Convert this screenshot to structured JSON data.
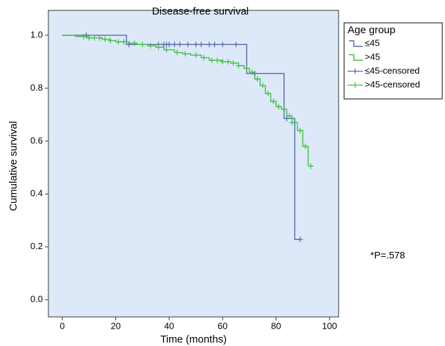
{
  "chart_data": {
    "type": "km",
    "title": "Disease-free survival",
    "x_label": "Time (months)",
    "y_label": "Cumulative survival",
    "legend_title": "Age group",
    "legend_position": "right",
    "annotation": "*P=.578",
    "xlim": [
      -5.2,
      103.4
    ],
    "xticks": [
      0,
      20,
      40,
      60,
      80,
      100
    ],
    "ylim": [
      -0.065,
      1.094
    ],
    "yticks": [
      {
        "value": 0,
        "label": "0.0"
      },
      0.2,
      0.4,
      0.6,
      0.8,
      {
        "value": 1,
        "label": "1.0"
      }
    ],
    "series": [
      {
        "name": "≤45",
        "kind": "step",
        "color": "#5565a8",
        "x": [
          0,
          24,
          69,
          83,
          87,
          89
        ],
        "values": [
          1.0,
          0.965,
          0.855,
          0.685,
          0.228,
          0.228
        ]
      },
      {
        "name": ">45",
        "kind": "step",
        "color": "#3cc03c",
        "x": [
          0,
          5,
          10,
          15,
          18,
          20,
          25,
          28,
          32,
          35,
          38,
          42,
          45,
          48,
          52,
          55,
          60,
          63,
          66,
          68,
          70,
          72,
          74,
          76,
          78,
          80,
          82,
          84,
          86,
          88,
          90,
          92
        ],
        "values": [
          1.0,
          0.995,
          0.99,
          0.985,
          0.98,
          0.975,
          0.97,
          0.965,
          0.96,
          0.955,
          0.945,
          0.935,
          0.93,
          0.925,
          0.915,
          0.905,
          0.9,
          0.895,
          0.885,
          0.875,
          0.86,
          0.835,
          0.81,
          0.78,
          0.75,
          0.73,
          0.72,
          0.695,
          0.67,
          0.64,
          0.58,
          0.505
        ]
      },
      {
        "name": "≤45-censored",
        "kind": "censor",
        "color": "#5565a8",
        "x": [
          9,
          25,
          36,
          38,
          39,
          40,
          42,
          44,
          47,
          50,
          52,
          55,
          57,
          60,
          65,
          72,
          84,
          89
        ],
        "values": [
          1.0,
          0.965,
          0.965,
          0.965,
          0.965,
          0.965,
          0.965,
          0.965,
          0.965,
          0.965,
          0.965,
          0.965,
          0.965,
          0.965,
          0.965,
          0.855,
          0.685,
          0.228
        ]
      },
      {
        "name": ">45-censored",
        "kind": "censor",
        "color": "#3cc03c",
        "x": [
          8,
          10,
          12,
          14,
          16,
          18,
          21,
          23,
          27,
          30,
          33,
          36,
          39,
          43,
          46,
          50,
          53,
          56,
          58,
          60,
          62,
          64,
          66,
          69,
          71,
          73,
          75,
          77,
          79,
          81,
          85,
          86,
          89,
          91,
          93
        ],
        "values": [
          0.995,
          0.99,
          0.99,
          0.99,
          0.985,
          0.98,
          0.975,
          0.975,
          0.97,
          0.965,
          0.96,
          0.955,
          0.945,
          0.935,
          0.93,
          0.925,
          0.915,
          0.905,
          0.905,
          0.9,
          0.9,
          0.895,
          0.885,
          0.875,
          0.86,
          0.835,
          0.81,
          0.78,
          0.75,
          0.73,
          0.695,
          0.67,
          0.64,
          0.58,
          0.505
        ]
      }
    ]
  }
}
